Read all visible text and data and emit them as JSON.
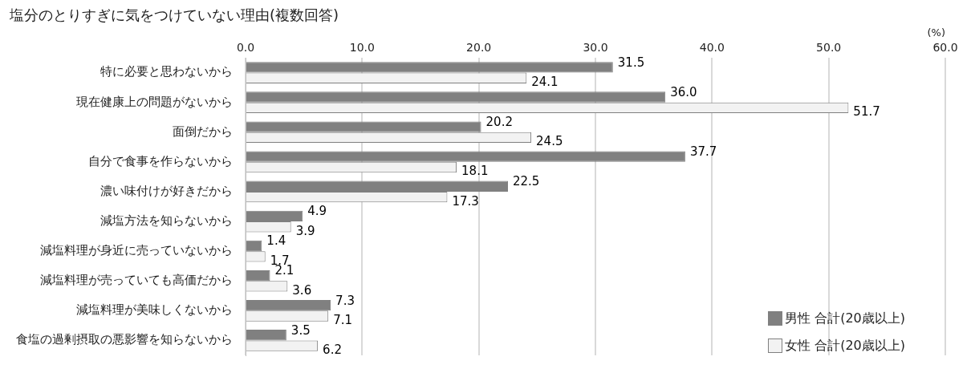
{
  "chart_data": {
    "type": "bar",
    "orientation": "horizontal",
    "title": "塩分のとりすぎに気をつけていない理由(複数回答)",
    "xlabel": "(%)",
    "categories": [
      "特に必要と思わないから",
      "現在健康上の問題がないから",
      "面倒だから",
      "自分で食事を作らないから",
      "濃い味付けが好きだから",
      "減塩方法を知らないから",
      "減塩料理が身近に売っていないから",
      "減塩料理が売っていても高価だから",
      "減塩料理が美味しくないから",
      "食塩の過剰摂取の悪影響を知らないから"
    ],
    "series": [
      {
        "name": "男性 合計(20歳以上)",
        "color": "#808080",
        "values": [
          31.5,
          36.0,
          20.2,
          37.7,
          22.5,
          4.9,
          1.4,
          2.1,
          7.3,
          3.5
        ],
        "value_labels": [
          "31.5",
          "36.0",
          "20.2",
          "37.7",
          "22.5",
          "4.9",
          "1.4",
          "2.1",
          "7.3",
          "3.5"
        ]
      },
      {
        "name": "女性 合計(20歳以上)",
        "color": "#f2f2f2",
        "values": [
          24.1,
          51.7,
          24.5,
          18.1,
          17.3,
          3.9,
          1.7,
          3.6,
          7.1,
          6.2
        ],
        "value_labels": [
          "24.1",
          "51.7",
          "24.5",
          "18.1",
          "17.3",
          "3.9",
          "1.7",
          "3.6",
          "7.1",
          "6.2"
        ]
      }
    ],
    "xlim": [
      0,
      60
    ],
    "xticks": [
      {
        "value": 0,
        "label": "0.0"
      },
      {
        "value": 10,
        "label": "10.0"
      },
      {
        "value": 20,
        "label": "20.0"
      },
      {
        "value": 30,
        "label": "30.0"
      },
      {
        "value": 40,
        "label": "40.0"
      },
      {
        "value": 50,
        "label": "50.0"
      },
      {
        "value": 60,
        "label": "60.0"
      }
    ],
    "grid": "x",
    "legend": "bottom right"
  }
}
